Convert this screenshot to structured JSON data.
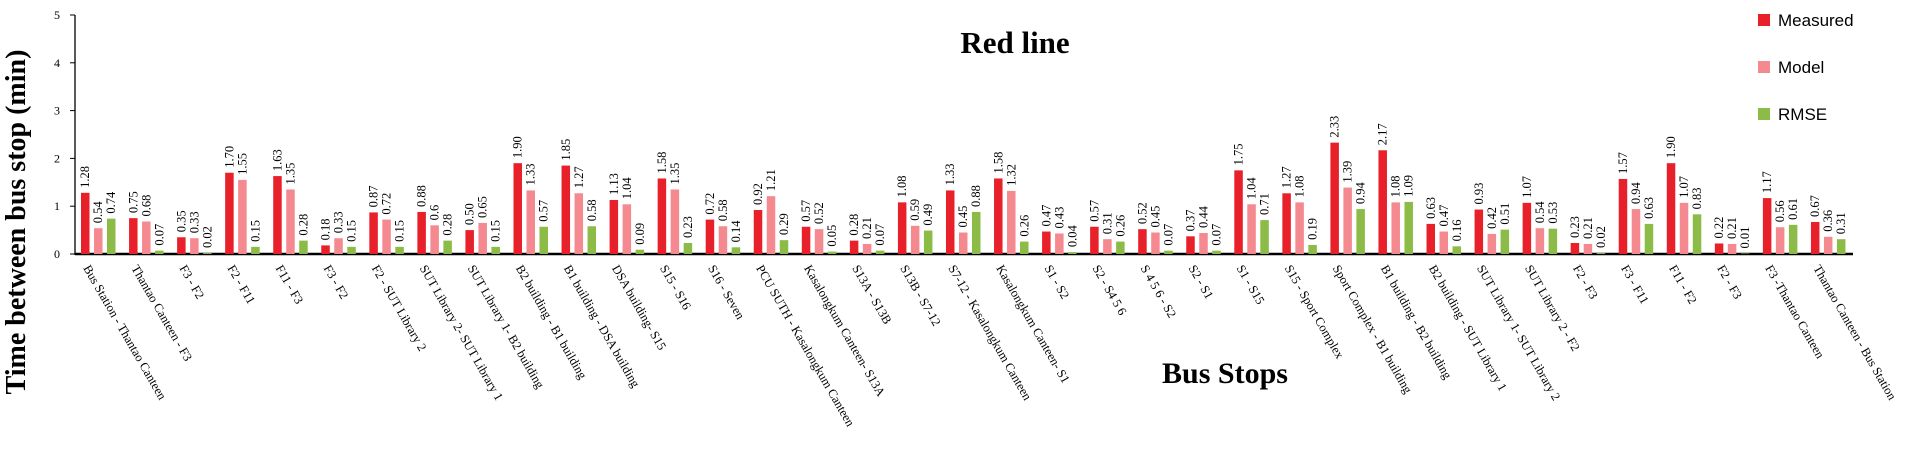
{
  "chart_data": {
    "type": "bar",
    "title": "Red line",
    "xlabel": "Bus Stops",
    "ylabel": "Time between bus stop (min)",
    "ylim": [
      0,
      5
    ],
    "yticks": [
      "0",
      "1",
      "2",
      "3",
      "4",
      "5"
    ],
    "grid": false,
    "legend_position": "top-right",
    "categories": [
      "Bus Station - Thantao Canteen",
      "Thantao Canteen - F3",
      "F3 - F2",
      "F2 - F11",
      "F11 - F3",
      "F3 - F2",
      "F2 - SUT Library 2",
      "SUT Library 2- SUT Library 1",
      "SUT Library 1- B2 building",
      "B2 building - B1 building",
      "B1 building - DSA building",
      "DSA building- S15",
      "S15 - S16",
      "S16 - Seven",
      "PCU SUTH - Kasalongkum Canteen",
      "Kasalongkum Canteen- S13A",
      "S13A - S13B",
      "S13B - S7-12",
      "S7-12 - Kasalongkum Canteen",
      "Kasalongkum Canteen- S1",
      "S1 - S2",
      "S2 - S4 5 6",
      "S 4 5 6 - S2",
      "S2 - S1",
      "S1 - S15",
      "S15 - Sport Complex",
      "Sport Complex - B1 building",
      "B1 building - B2 building",
      "B2 building - SUT Library 1",
      "SUT Library 1- SUT Library 2",
      "SUT Library 2 - F2",
      "F2 - F3",
      "F3 - F11",
      "F11 - F2",
      "F2 - F3",
      "F3 -Thantao Canteen",
      "Thantao Canteen - Bus Station"
    ],
    "series": [
      {
        "name": "Measured",
        "color": "#e8202a",
        "values": [
          1.28,
          0.75,
          0.35,
          1.7,
          1.63,
          0.18,
          0.87,
          0.88,
          0.5,
          1.9,
          1.85,
          1.13,
          1.58,
          0.72,
          0.92,
          0.57,
          0.28,
          1.08,
          1.33,
          1.58,
          0.47,
          0.57,
          0.52,
          0.37,
          1.75,
          1.27,
          2.33,
          2.17,
          0.63,
          0.93,
          1.07,
          0.23,
          1.57,
          1.9,
          0.22,
          1.17,
          0.67
        ],
        "labels": [
          "1.28",
          "0.75",
          "0.35",
          "1.70",
          "1.63",
          "0.18",
          "0.87",
          "0.88",
          "0.50",
          "1.90",
          "1.85",
          "1.13",
          "1.58",
          "0.72",
          "0.92",
          "0.57",
          "0.28",
          "1.08",
          "1.33",
          "1.58",
          "0.47",
          "0.57",
          "0.52",
          "0.37",
          "1.75",
          "1.27",
          "2.33",
          "2.17",
          "0.63",
          "0.93",
          "1.07",
          "0.23",
          "1.57",
          "1.90",
          "0.22",
          "1.17",
          "0.67"
        ]
      },
      {
        "name": "Model",
        "color": "#f4898f",
        "values": [
          0.54,
          0.68,
          0.33,
          1.55,
          1.35,
          0.33,
          0.72,
          0.6,
          0.65,
          1.33,
          1.27,
          1.04,
          1.35,
          0.58,
          1.21,
          0.52,
          0.21,
          0.59,
          0.45,
          1.32,
          0.43,
          0.31,
          0.45,
          0.44,
          1.04,
          1.08,
          1.39,
          1.08,
          0.47,
          0.42,
          0.54,
          0.21,
          0.94,
          1.07,
          0.21,
          0.56,
          0.36
        ],
        "labels": [
          "0.54",
          "0.68",
          "0.33",
          "1.55",
          "1.35",
          "0.33",
          "0.72",
          "0.6",
          "0.65",
          "1.33",
          "1.27",
          "1.04",
          "1.35",
          "0.58",
          "1.21",
          "0.52",
          "0.21",
          "0.59",
          "0.45",
          "1.32",
          "0.43",
          "0.31",
          "0.45",
          "0.44",
          "1.04",
          "1.08",
          "1.39",
          "1.08",
          "0.47",
          "0.42",
          "0.54",
          "0.21",
          "0.94",
          "1.07",
          "0.21",
          "0.56",
          "0.36"
        ]
      },
      {
        "name": "RMSE",
        "color": "#8dbb47",
        "values": [
          0.74,
          0.07,
          0.02,
          0.15,
          0.28,
          0.15,
          0.15,
          0.28,
          0.15,
          0.57,
          0.58,
          0.09,
          0.23,
          0.14,
          0.29,
          0.05,
          0.07,
          0.49,
          0.88,
          0.26,
          0.04,
          0.26,
          0.07,
          0.07,
          0.71,
          0.19,
          0.94,
          1.09,
          0.16,
          0.51,
          0.53,
          0.02,
          0.63,
          0.83,
          0.01,
          0.61,
          0.31
        ],
        "labels": [
          "0.74",
          "0.07",
          "0.02",
          "0.15",
          "0.28",
          "0.15",
          "0.15",
          "0.28",
          "0.15",
          "0.57",
          "0.58",
          "0.09",
          "0.23",
          "0.14",
          "0.29",
          "0.05",
          "0.07",
          "0.49",
          "0.88",
          "0.26",
          "0.04",
          "0.26",
          "0.07",
          "0.07",
          "0.71",
          "0.19",
          "0.94",
          "1.09",
          "0.16",
          "0.51",
          "0.53",
          "0.02",
          "0.63",
          "0.83",
          "0.01",
          "0.61",
          "0.31"
        ]
      }
    ]
  }
}
